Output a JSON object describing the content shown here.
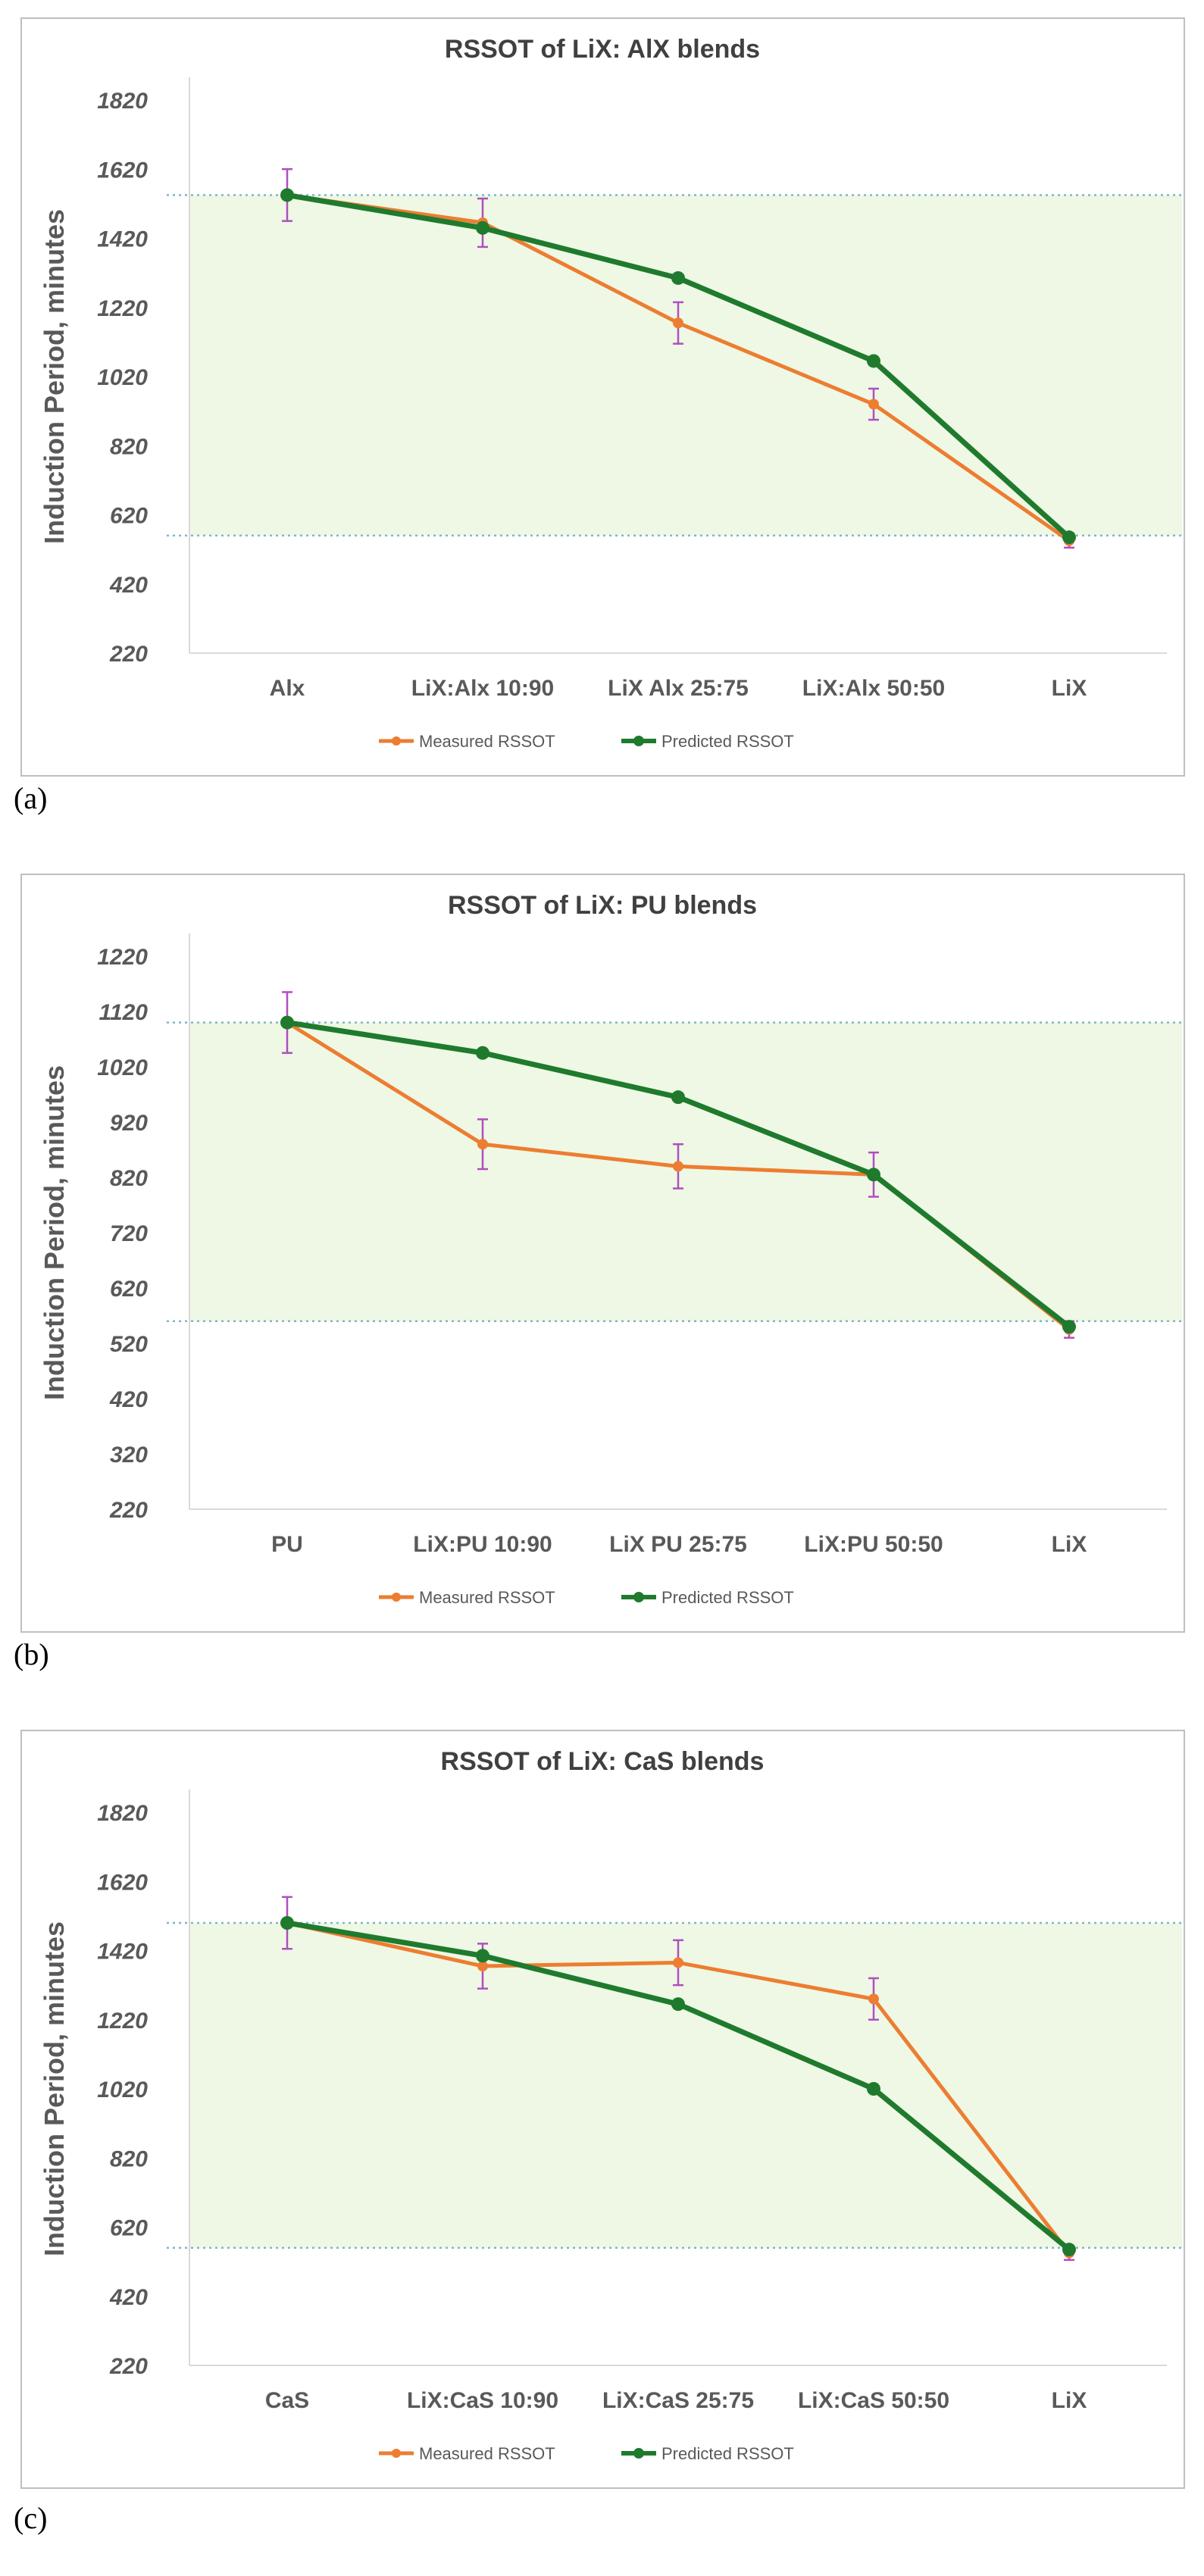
{
  "figure": {
    "panels": [
      {
        "label": "(a)"
      },
      {
        "label": "(b)"
      },
      {
        "label": "(c)"
      }
    ]
  },
  "colors": {
    "measured": "#ed7d31",
    "predicted": "#1f7a2e",
    "error_bar": "#b04fc0",
    "band_fill": "#eef8e4",
    "band_line": "#7fb6c6",
    "frame": "#bfbfbf",
    "axis_text": "#595959",
    "title_text": "#404040"
  },
  "chart_data": [
    {
      "type": "line",
      "title": "RSSOT of LiX: AlX blends",
      "ylabel": "Induction Period, minutes",
      "xlabel": "",
      "categories": [
        "Alx",
        "LiX:Alx 10:90",
        "LiX Alx 25:75",
        "LiX:Alx 50:50",
        "LiX"
      ],
      "yticks": [
        220,
        420,
        620,
        820,
        1020,
        1220,
        1420,
        1620,
        1820
      ],
      "ylim": [
        220,
        1820
      ],
      "band": [
        560,
        1545
      ],
      "legend_position": "bottom",
      "series": [
        {
          "name": "Measured RSSOT",
          "values": [
            1545,
            1465,
            1175,
            940,
            545
          ],
          "error": [
            75,
            70,
            60,
            45,
            20
          ]
        },
        {
          "name": "Predicted RSSOT",
          "values": [
            1545,
            1450,
            1305,
            1065,
            555
          ]
        }
      ]
    },
    {
      "type": "line",
      "title": "RSSOT of LiX: PU blends",
      "ylabel": "Induction Period, minutes",
      "xlabel": "",
      "categories": [
        "PU",
        "LiX:PU 10:90",
        "LiX PU 25:75",
        "LiX:PU 50:50",
        "LiX"
      ],
      "yticks": [
        220,
        320,
        420,
        520,
        620,
        720,
        820,
        920,
        1020,
        1120,
        1220
      ],
      "ylim": [
        220,
        1220
      ],
      "band": [
        560,
        1100
      ],
      "legend_position": "bottom",
      "series": [
        {
          "name": "Measured RSSOT",
          "values": [
            1100,
            880,
            840,
            825,
            545
          ],
          "error": [
            55,
            45,
            40,
            40,
            15
          ]
        },
        {
          "name": "Predicted RSSOT",
          "values": [
            1100,
            1045,
            965,
            825,
            550
          ]
        }
      ]
    },
    {
      "type": "line",
      "title": "RSSOT of LiX: CaS blends",
      "ylabel": "Induction Period, minutes",
      "xlabel": "",
      "categories": [
        "CaS",
        "LiX:CaS 10:90",
        "LiX:CaS 25:75",
        "LiX:CaS 50:50",
        "LiX"
      ],
      "yticks": [
        220,
        420,
        620,
        820,
        1020,
        1220,
        1420,
        1620,
        1820
      ],
      "ylim": [
        220,
        1820
      ],
      "band": [
        560,
        1500
      ],
      "legend_position": "bottom",
      "series": [
        {
          "name": "Measured RSSOT",
          "values": [
            1500,
            1375,
            1385,
            1280,
            545
          ],
          "error": [
            75,
            65,
            65,
            60,
            20
          ]
        },
        {
          "name": "Predicted RSSOT",
          "values": [
            1500,
            1405,
            1265,
            1020,
            555
          ]
        }
      ]
    }
  ]
}
